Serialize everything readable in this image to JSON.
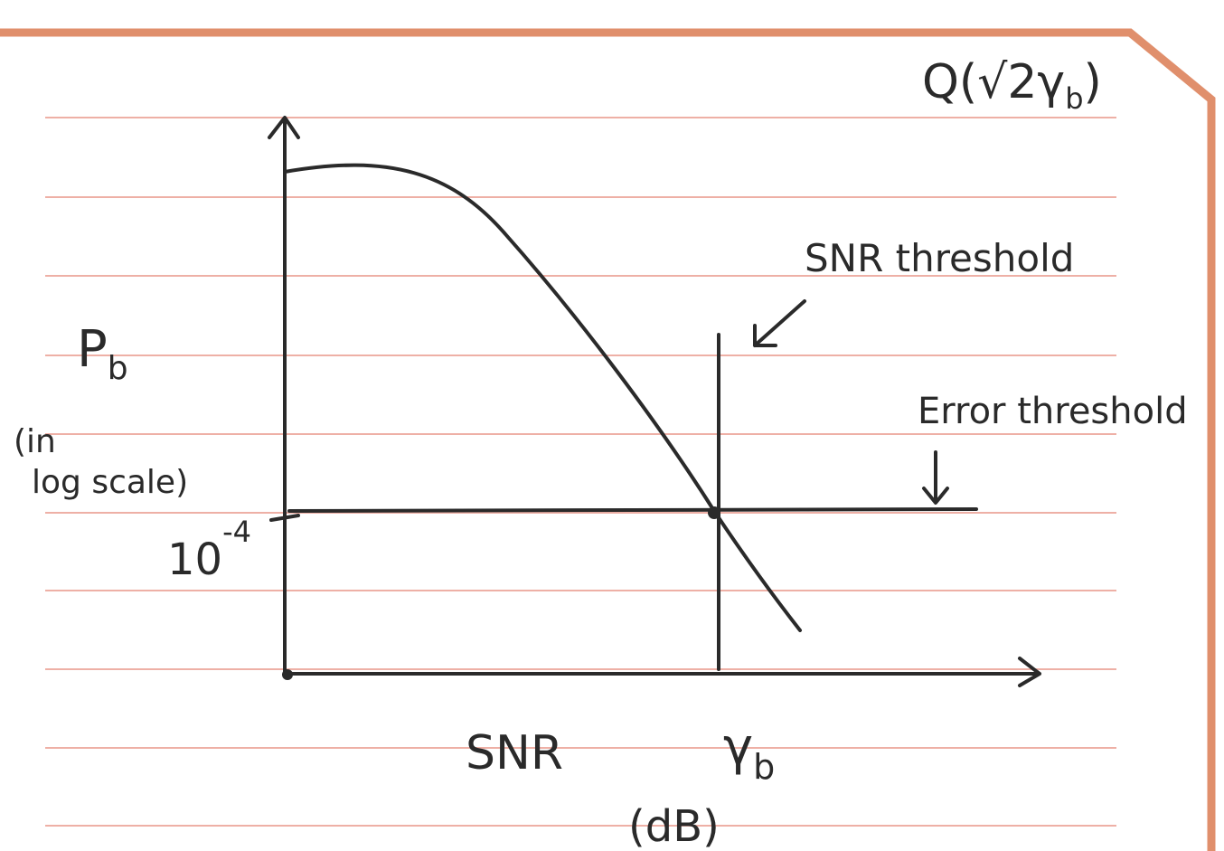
{
  "formula": {
    "prefix": "Q(√2γ",
    "subscript": "b",
    "suffix": ")"
  },
  "annotations": {
    "snr_threshold": "SNR threshold",
    "error_threshold": "Error threshold"
  },
  "y_axis": {
    "symbol": "P",
    "subscript": "b",
    "note_line1": "(in",
    "note_line2": "log scale)",
    "tick": {
      "base": "10",
      "exponent": "-4"
    }
  },
  "x_axis": {
    "label": "SNR",
    "unit": "(dB)",
    "marker": {
      "symbol": "γ",
      "subscript": "b"
    }
  }
}
